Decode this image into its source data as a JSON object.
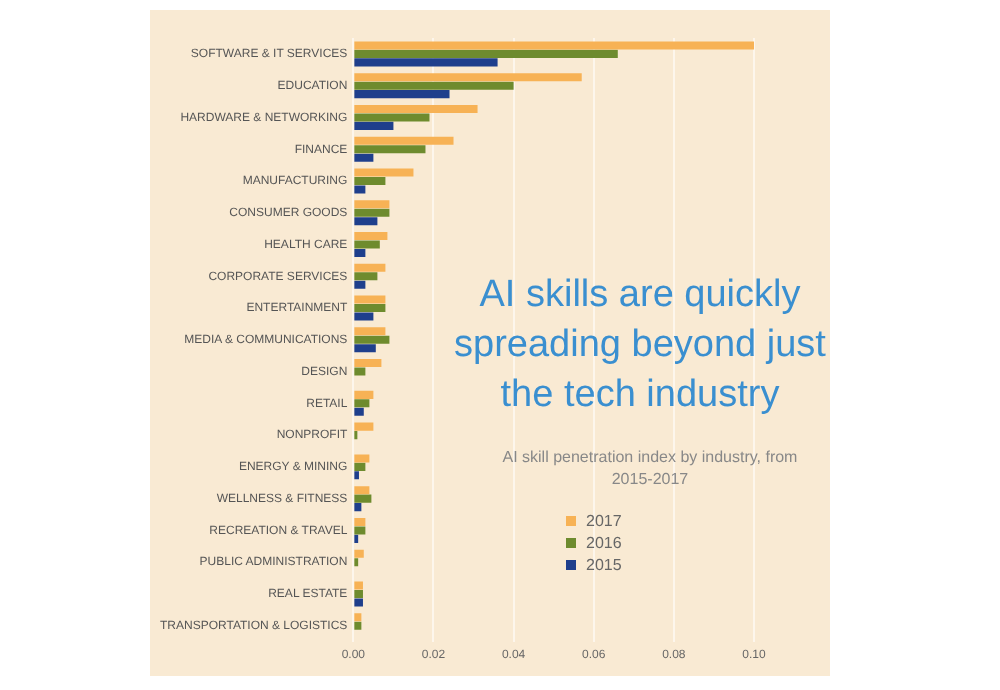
{
  "chart_data": {
    "type": "bar",
    "orientation": "horizontal",
    "title": "AI skills are quickly spreading beyond just the tech industry",
    "subtitle": "AI skill penetration index by industry, from 2015-2017",
    "categories": [
      "SOFTWARE & IT SERVICES",
      "EDUCATION",
      "HARDWARE & NETWORKING",
      "FINANCE",
      "MANUFACTURING",
      "CONSUMER GOODS",
      "HEALTH CARE",
      "CORPORATE SERVICES",
      "ENTERTAINMENT",
      "MEDIA & COMMUNICATIONS",
      "DESIGN",
      "RETAIL",
      "NONPROFIT",
      "ENERGY & MINING",
      "WELLNESS & FITNESS",
      "RECREATION & TRAVEL",
      "PUBLIC ADMINISTRATION",
      "REAL ESTATE",
      "TRANSPORTATION & LOGISTICS"
    ],
    "series": [
      {
        "name": "2017",
        "color": "#f7b255",
        "values": [
          0.1,
          0.057,
          0.031,
          0.025,
          0.015,
          0.009,
          0.0085,
          0.008,
          0.008,
          0.008,
          0.007,
          0.005,
          0.005,
          0.004,
          0.004,
          0.003,
          0.0026,
          0.0024,
          0.002
        ]
      },
      {
        "name": "2016",
        "color": "#6e8b2e",
        "values": [
          0.066,
          0.04,
          0.019,
          0.018,
          0.008,
          0.009,
          0.0066,
          0.006,
          0.008,
          0.009,
          0.003,
          0.004,
          0.001,
          0.003,
          0.0045,
          0.003,
          0.0012,
          0.0024,
          0.002
        ]
      },
      {
        "name": "2015",
        "color": "#1f3f8c",
        "values": [
          0.036,
          0.024,
          0.01,
          0.005,
          0.003,
          0.006,
          0.003,
          0.003,
          0.005,
          0.0056,
          null,
          0.0026,
          null,
          0.0014,
          0.002,
          0.0012,
          null,
          0.0024,
          null
        ]
      }
    ],
    "xlim": [
      0,
      0.1
    ],
    "xticks": [
      {
        "value": 0,
        "label": "0.00"
      },
      {
        "value": 0.02,
        "label": "0.02"
      },
      {
        "value": 0.04,
        "label": "0.04"
      },
      {
        "value": 0.06,
        "label": "0.06"
      },
      {
        "value": 0.08,
        "label": "0.08"
      },
      {
        "value": 0.1,
        "label": "0.10"
      }
    ],
    "grid": "x",
    "legend": "bottom right"
  }
}
